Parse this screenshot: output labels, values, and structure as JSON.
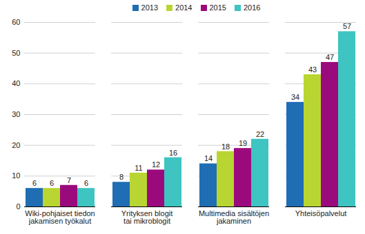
{
  "chart_data": {
    "type": "bar",
    "categories": [
      "Wiki-pohjaiset tiedon\njakamisen työkalut",
      "Yrityksen blogit\ntai mikroblogit",
      "Multimedia sisältöjen\njakaminen",
      "Yhteisöpalvelut"
    ],
    "series": [
      {
        "name": "2013",
        "color": "#1f6db3",
        "values": [
          6,
          8,
          14,
          34
        ]
      },
      {
        "name": "2014",
        "color": "#b9d531",
        "values": [
          6,
          11,
          18,
          43
        ]
      },
      {
        "name": "2015",
        "color": "#9b0a7c",
        "values": [
          7,
          12,
          19,
          47
        ]
      },
      {
        "name": "2016",
        "color": "#3ec4c1",
        "values": [
          6,
          16,
          22,
          57
        ]
      }
    ],
    "ylim": [
      0,
      60
    ],
    "yticks": [
      0,
      10,
      20,
      30,
      40,
      50,
      60
    ],
    "grid": true,
    "data_labels": true,
    "legend": "top"
  }
}
